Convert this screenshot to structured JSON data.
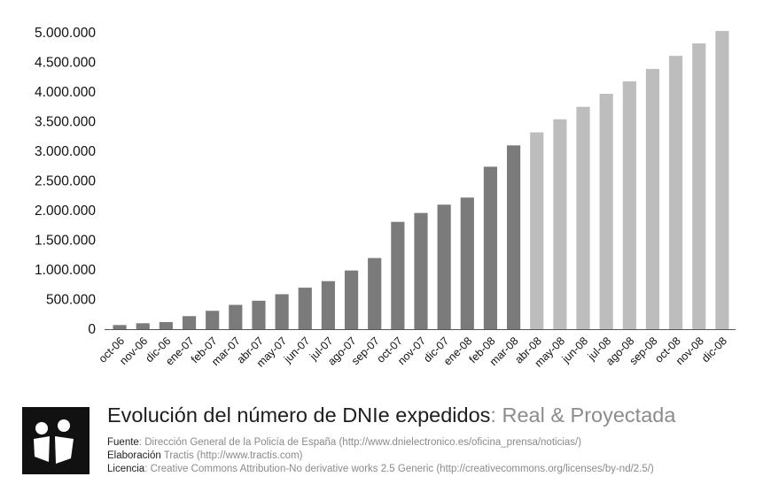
{
  "chart_data": {
    "type": "bar",
    "categories": [
      "oct-06",
      "nov-06",
      "dic-06",
      "ene-07",
      "feb-07",
      "mar-07",
      "abr-07",
      "may-07",
      "jun-07",
      "jul-07",
      "ago-07",
      "sep-07",
      "oct-07",
      "nov-07",
      "dic-07",
      "ene-08",
      "feb-08",
      "mar-08",
      "abr-08",
      "may-08",
      "jun-08",
      "jul-08",
      "ago-08",
      "sep-08",
      "oct-08",
      "nov-08",
      "dic-08"
    ],
    "values": [
      70000,
      100000,
      120000,
      220000,
      310000,
      410000,
      480000,
      590000,
      700000,
      810000,
      990000,
      1200000,
      1810000,
      1960000,
      2100000,
      2220000,
      2740000,
      3100000,
      3320000,
      3540000,
      3750000,
      3970000,
      4180000,
      4390000,
      4610000,
      4820000,
      5030000
    ],
    "series_type": [
      "real",
      "real",
      "real",
      "real",
      "real",
      "real",
      "real",
      "real",
      "real",
      "real",
      "real",
      "real",
      "real",
      "real",
      "real",
      "real",
      "real",
      "real",
      "proyectada",
      "proyectada",
      "proyectada",
      "proyectada",
      "proyectada",
      "proyectada",
      "proyectada",
      "proyectada",
      "proyectada"
    ],
    "ylim": [
      0,
      5000000
    ],
    "yticks": [
      0,
      500000,
      1000000,
      1500000,
      2000000,
      2500000,
      3000000,
      3500000,
      4000000,
      4500000,
      5000000
    ],
    "ytick_labels": [
      "0",
      "500.000",
      "1.000.000",
      "1.500.000",
      "2.000.000",
      "2.500.000",
      "3.000.000",
      "3.500.000",
      "4.000.000",
      "4.500.000",
      "5.000.000"
    ],
    "grid": false,
    "title": "",
    "xlabel": "",
    "ylabel": ""
  },
  "colors": {
    "real": "#7b7b7b",
    "proyectada": "#bdbdbd",
    "axis": "#555555",
    "logo_bg": "#111111"
  },
  "footer": {
    "logo_icon": "tractis-logo-icon",
    "title_main": "Evolución del número de DNIe expedidos",
    "title_sep": ": ",
    "title_sub": "Real & Proyectada",
    "fuente_label": "Fuente",
    "fuente_value": ": Dirección General de la Policía de España (http://www.dnielectronico.es/oficina_prensa/noticias/)",
    "elaboracion_label": "Elaboración",
    "elaboracion_value": " Tractis (http://www.tractis.com)",
    "licencia_label": "Licencia",
    "licencia_value": ": Creative Commons Attribution-No derivative works 2.5 Generic (http://creativecommons.org/licenses/by-nd/2.5/)"
  }
}
